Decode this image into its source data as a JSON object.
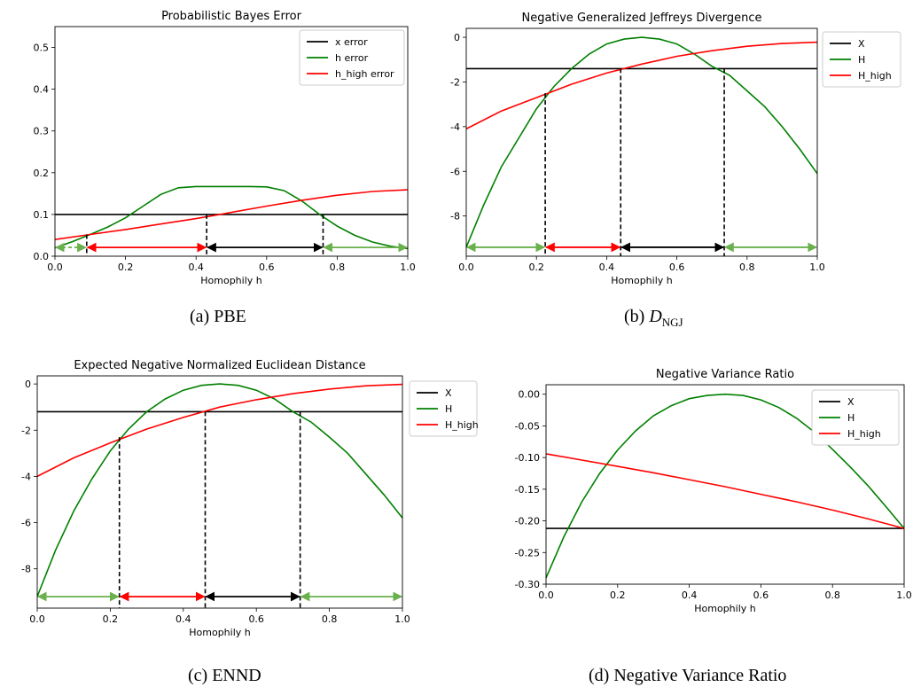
{
  "chart_data": [
    {
      "id": "a",
      "type": "line",
      "title": "Probabilistic Bayes Error",
      "xlabel": "Homophily h",
      "ylabel": "",
      "xlim": [
        0,
        1
      ],
      "ylim": [
        0,
        0.55
      ],
      "xticks": [
        0.0,
        0.2,
        0.4,
        0.6,
        0.8,
        1.0
      ],
      "yticks": [
        0.0,
        0.1,
        0.2,
        0.3,
        0.4,
        0.5
      ],
      "legend_position": "top-right",
      "caption": "(a) PBE",
      "series": [
        {
          "name": "x error",
          "color": "#000000",
          "x": [
            0,
            1
          ],
          "y": [
            0.1,
            0.1
          ]
        },
        {
          "name": "h error",
          "color": "#008000",
          "x": [
            0,
            0.05,
            0.1,
            0.15,
            0.2,
            0.25,
            0.3,
            0.35,
            0.4,
            0.45,
            0.5,
            0.55,
            0.6,
            0.65,
            0.7,
            0.75,
            0.8,
            0.85,
            0.9,
            0.95,
            1
          ],
          "y": [
            0.02,
            0.035,
            0.052,
            0.07,
            0.092,
            0.12,
            0.148,
            0.164,
            0.167,
            0.167,
            0.167,
            0.167,
            0.166,
            0.157,
            0.132,
            0.1,
            0.072,
            0.05,
            0.034,
            0.024,
            0.018
          ]
        },
        {
          "name": "h_high error",
          "color": "#ff0000",
          "x": [
            0,
            0.1,
            0.2,
            0.3,
            0.4,
            0.5,
            0.6,
            0.7,
            0.8,
            0.9,
            1
          ],
          "y": [
            0.04,
            0.052,
            0.064,
            0.077,
            0.09,
            0.105,
            0.12,
            0.134,
            0.146,
            0.155,
            0.159
          ]
        }
      ],
      "vlines": [
        {
          "x": 0.09,
          "y": 0.052
        },
        {
          "x": 0.43,
          "y": 0.1
        },
        {
          "x": 0.76,
          "y": 0.1
        }
      ],
      "arrows": [
        {
          "x1": 0.0,
          "x2": 0.09,
          "color": "#6ab04c",
          "dashed": true
        },
        {
          "x1": 0.09,
          "x2": 0.43,
          "color": "#ff0000",
          "dashed": false
        },
        {
          "x1": 0.43,
          "x2": 0.76,
          "color": "#000000",
          "dashed": false
        },
        {
          "x1": 0.76,
          "x2": 1.0,
          "color": "#6ab04c",
          "dashed": false
        }
      ],
      "arrow_y": 0.021
    },
    {
      "id": "b",
      "type": "line",
      "title": "Negative Generalized Jeffreys Divergence",
      "xlabel": "Homophily h",
      "ylabel": "",
      "xlim": [
        0,
        1
      ],
      "ylim": [
        -9.8,
        0.4
      ],
      "xticks": [
        0.0,
        0.2,
        0.4,
        0.6,
        0.8,
        1.0
      ],
      "yticks": [
        -8,
        -6,
        -4,
        -2,
        0
      ],
      "legend_position": "outside-right",
      "caption": "(b) D_NGJ",
      "series": [
        {
          "name": "X",
          "color": "#000000",
          "x": [
            0,
            1
          ],
          "y": [
            -1.4,
            -1.4
          ]
        },
        {
          "name": "H",
          "color": "#008000",
          "x": [
            0,
            0.05,
            0.1,
            0.15,
            0.2,
            0.25,
            0.3,
            0.35,
            0.4,
            0.45,
            0.5,
            0.55,
            0.6,
            0.65,
            0.7,
            0.75,
            0.8,
            0.85,
            0.9,
            0.95,
            1
          ],
          "y": [
            -9.4,
            -7.5,
            -5.8,
            -4.5,
            -3.2,
            -2.2,
            -1.4,
            -0.75,
            -0.3,
            -0.08,
            0.0,
            -0.08,
            -0.3,
            -0.75,
            -1.3,
            -1.7,
            -2.4,
            -3.1,
            -4.0,
            -5.0,
            -6.1
          ]
        },
        {
          "name": "H_high",
          "color": "#ff0000",
          "x": [
            0,
            0.1,
            0.2,
            0.3,
            0.4,
            0.5,
            0.6,
            0.7,
            0.8,
            0.9,
            1
          ],
          "y": [
            -4.1,
            -3.3,
            -2.7,
            -2.1,
            -1.6,
            -1.2,
            -0.85,
            -0.6,
            -0.4,
            -0.28,
            -0.22
          ]
        }
      ],
      "vlines": [
        {
          "x": 0.225,
          "y": -2.5
        },
        {
          "x": 0.44,
          "y": -1.4
        },
        {
          "x": 0.735,
          "y": -1.4
        }
      ],
      "arrows": [
        {
          "x1": 0.0,
          "x2": 0.225,
          "color": "#6ab04c",
          "dashed": false
        },
        {
          "x1": 0.225,
          "x2": 0.44,
          "color": "#ff0000",
          "dashed": false
        },
        {
          "x1": 0.44,
          "x2": 0.735,
          "color": "#000000",
          "dashed": false
        },
        {
          "x1": 0.735,
          "x2": 1.0,
          "color": "#6ab04c",
          "dashed": false
        }
      ],
      "arrow_y": -9.4
    },
    {
      "id": "c",
      "type": "line",
      "title": "Expected Negative Normalized Euclidean Distance",
      "xlabel": "Homophily h",
      "ylabel": "",
      "xlim": [
        0,
        1
      ],
      "ylim": [
        -9.7,
        0.35
      ],
      "xticks": [
        0.0,
        0.2,
        0.4,
        0.6,
        0.8,
        1.0
      ],
      "yticks": [
        -8,
        -6,
        -4,
        -2,
        0
      ],
      "legend_position": "outside-right",
      "caption": "(c) ENND",
      "series": [
        {
          "name": "X",
          "color": "#000000",
          "x": [
            0,
            1
          ],
          "y": [
            -1.2,
            -1.2
          ]
        },
        {
          "name": "H",
          "color": "#008000",
          "x": [
            0,
            0.05,
            0.1,
            0.15,
            0.2,
            0.25,
            0.3,
            0.35,
            0.4,
            0.45,
            0.5,
            0.55,
            0.6,
            0.65,
            0.7,
            0.75,
            0.8,
            0.85,
            0.9,
            0.95,
            1
          ],
          "y": [
            -9.2,
            -7.2,
            -5.5,
            -4.1,
            -2.9,
            -1.95,
            -1.2,
            -0.65,
            -0.27,
            -0.06,
            0.0,
            -0.06,
            -0.27,
            -0.65,
            -1.2,
            -1.65,
            -2.3,
            -3.0,
            -3.9,
            -4.8,
            -5.8
          ]
        },
        {
          "name": "H_high",
          "color": "#ff0000",
          "x": [
            0,
            0.1,
            0.2,
            0.3,
            0.4,
            0.5,
            0.6,
            0.7,
            0.8,
            0.9,
            1
          ],
          "y": [
            -4.0,
            -3.2,
            -2.55,
            -1.95,
            -1.45,
            -1.0,
            -0.68,
            -0.42,
            -0.22,
            -0.08,
            -0.02
          ]
        }
      ],
      "vlines": [
        {
          "x": 0.225,
          "y": -2.3
        },
        {
          "x": 0.46,
          "y": -1.2
        },
        {
          "x": 0.72,
          "y": -1.2
        }
      ],
      "arrows": [
        {
          "x1": 0.0,
          "x2": 0.225,
          "color": "#6ab04c",
          "dashed": false
        },
        {
          "x1": 0.225,
          "x2": 0.46,
          "color": "#ff0000",
          "dashed": false
        },
        {
          "x1": 0.46,
          "x2": 0.72,
          "color": "#000000",
          "dashed": false
        },
        {
          "x1": 0.72,
          "x2": 1.0,
          "color": "#6ab04c",
          "dashed": false
        }
      ],
      "arrow_y": -9.2
    },
    {
      "id": "d",
      "type": "line",
      "title": "Negative Variance Ratio",
      "xlabel": "Homophily h",
      "ylabel": "",
      "xlim": [
        0,
        1
      ],
      "ylim": [
        -0.3,
        0.015
      ],
      "xticks": [
        0.0,
        0.2,
        0.4,
        0.6,
        0.8,
        1.0
      ],
      "yticks": [
        -0.3,
        -0.25,
        -0.2,
        -0.15,
        -0.1,
        -0.05,
        0.0
      ],
      "legend_position": "top-right",
      "caption": "(d) Negative Variance Ratio",
      "series": [
        {
          "name": "X",
          "color": "#000000",
          "x": [
            0,
            1
          ],
          "y": [
            -0.212,
            -0.212
          ]
        },
        {
          "name": "H",
          "color": "#008000",
          "x": [
            0,
            0.05,
            0.1,
            0.15,
            0.2,
            0.25,
            0.3,
            0.35,
            0.4,
            0.45,
            0.5,
            0.55,
            0.6,
            0.65,
            0.7,
            0.75,
            0.8,
            0.85,
            0.9,
            0.95,
            1
          ],
          "y": [
            -0.29,
            -0.225,
            -0.17,
            -0.125,
            -0.088,
            -0.058,
            -0.034,
            -0.018,
            -0.007,
            -0.002,
            0.0,
            -0.002,
            -0.009,
            -0.021,
            -0.038,
            -0.06,
            -0.087,
            -0.115,
            -0.145,
            -0.178,
            -0.212
          ]
        },
        {
          "name": "H_high",
          "color": "#ff0000",
          "x": [
            0,
            0.1,
            0.2,
            0.3,
            0.4,
            0.5,
            0.6,
            0.7,
            0.8,
            0.9,
            1
          ],
          "y": [
            -0.094,
            -0.104,
            -0.114,
            -0.124,
            -0.135,
            -0.146,
            -0.158,
            -0.17,
            -0.183,
            -0.197,
            -0.212
          ]
        }
      ],
      "vlines": [],
      "arrows": []
    }
  ]
}
